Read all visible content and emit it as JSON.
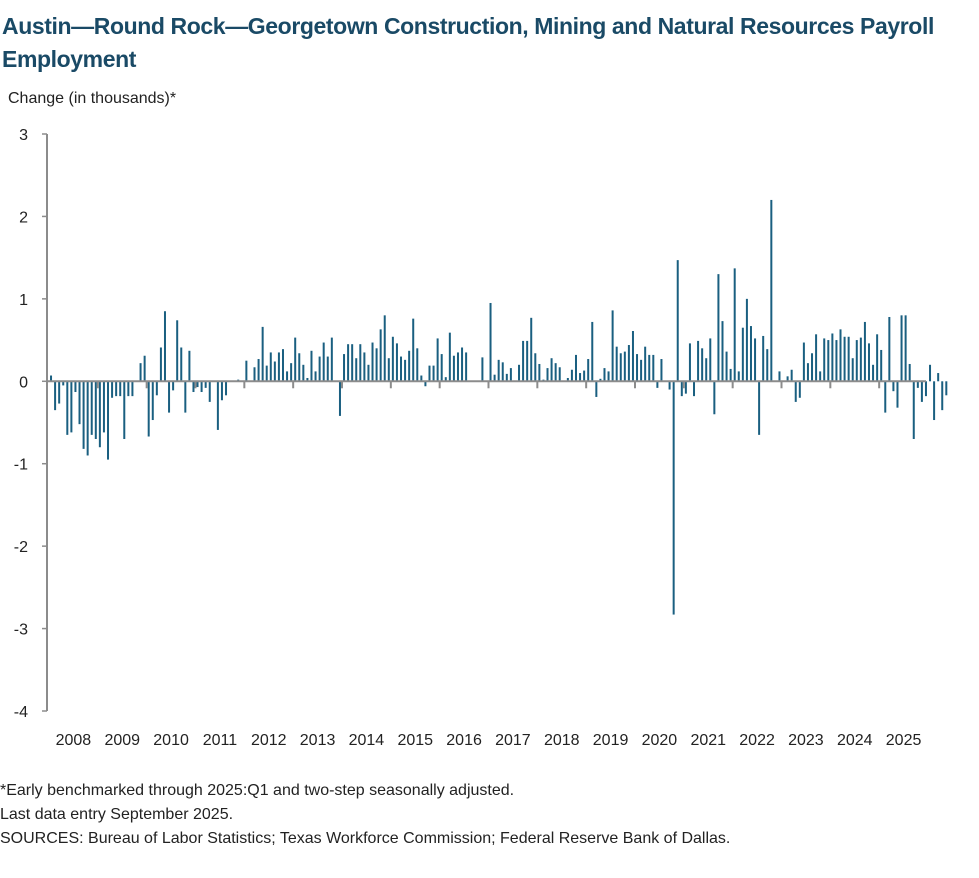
{
  "chart_data": {
    "type": "bar",
    "title": "Austin—Round Rock—Georgetown Construction, Mining and Natural Resources Payroll Employment",
    "ylabel": "Change (in thousands)*",
    "xlabel": "",
    "ylim": [
      -4,
      3
    ],
    "yticks": [
      3,
      2,
      1,
      0,
      -1,
      -2,
      -3,
      -4
    ],
    "ytick_labels": [
      "3",
      "2",
      "1",
      "0",
      "-1",
      "-2",
      "-3",
      "-4"
    ],
    "xtick_labels": [
      "2008",
      "2009",
      "2010",
      "2011",
      "2012",
      "2013",
      "2014",
      "2015",
      "2016",
      "2017",
      "2018",
      "2019",
      "2020",
      "2021",
      "2022",
      "2023",
      "2024",
      "2025"
    ],
    "frequency": "monthly",
    "start": "2008-01",
    "end": "2025-09",
    "bar_color": "#1a5f80",
    "grid": false,
    "legend": "none",
    "values": [
      0.07,
      -0.35,
      -0.27,
      -0.05,
      -0.65,
      -0.62,
      -0.13,
      -0.52,
      -0.82,
      -0.9,
      -0.65,
      -0.7,
      -0.8,
      -0.62,
      -0.95,
      -0.2,
      -0.18,
      -0.18,
      -0.7,
      -0.18,
      -0.18,
      0.0,
      0.22,
      0.31,
      -0.67,
      -0.47,
      -0.17,
      0.41,
      0.85,
      -0.38,
      -0.11,
      0.74,
      0.41,
      -0.38,
      0.37,
      -0.13,
      -0.07,
      -0.13,
      -0.08,
      -0.25,
      0.0,
      -0.59,
      -0.23,
      -0.17,
      0.0,
      0.0,
      0.02,
      0.0,
      0.25,
      0.0,
      0.17,
      0.27,
      0.66,
      0.19,
      0.35,
      0.24,
      0.35,
      0.39,
      0.12,
      0.22,
      0.53,
      0.34,
      0.2,
      0.04,
      0.37,
      0.12,
      0.3,
      0.47,
      0.3,
      0.53,
      0.0,
      -0.42,
      0.33,
      0.45,
      0.45,
      0.28,
      0.45,
      0.35,
      0.2,
      0.47,
      0.4,
      0.63,
      0.8,
      0.28,
      0.54,
      0.46,
      0.3,
      0.26,
      0.37,
      0.76,
      0.4,
      0.07,
      -0.06,
      0.19,
      0.19,
      0.52,
      0.33,
      0.05,
      0.59,
      0.31,
      0.35,
      0.41,
      0.35,
      0.0,
      0.0,
      0.0,
      0.29,
      0.0,
      0.95,
      0.08,
      0.26,
      0.23,
      0.09,
      0.16,
      0.0,
      0.2,
      0.49,
      0.49,
      0.77,
      0.34,
      0.21,
      0.02,
      0.16,
      0.28,
      0.22,
      0.17,
      0.0,
      0.04,
      0.14,
      0.32,
      0.1,
      0.13,
      0.27,
      0.72,
      -0.19,
      0.03,
      0.16,
      0.12,
      0.86,
      0.42,
      0.34,
      0.36,
      0.44,
      0.61,
      0.33,
      0.26,
      0.42,
      0.32,
      0.32,
      -0.08,
      0.27,
      0.0,
      -0.1,
      -2.83,
      1.47,
      -0.18,
      -0.15,
      0.46,
      -0.18,
      0.49,
      0.4,
      0.28,
      0.52,
      -0.4,
      1.3,
      0.73,
      0.36,
      0.15,
      1.37,
      0.12,
      0.65,
      1.0,
      0.67,
      0.52,
      -0.65,
      0.55,
      0.39,
      2.2,
      0.0,
      0.12,
      0.0,
      0.06,
      0.14,
      -0.25,
      -0.2,
      0.47,
      0.22,
      0.34,
      0.57,
      0.12,
      0.52,
      0.5,
      0.58,
      0.5,
      0.63,
      0.54,
      0.54,
      0.28,
      0.5,
      0.53,
      0.72,
      0.46,
      0.2,
      0.57,
      0.38,
      -0.38,
      0.78,
      -0.12,
      -0.32,
      0.8,
      0.8,
      0.21,
      -0.7,
      -0.08,
      -0.25,
      -0.18,
      0.2,
      -0.47,
      0.1,
      -0.35,
      -0.17
    ]
  },
  "footnotes": {
    "note1": "*Early benchmarked through 2025:Q1 and two-step seasonally adjusted.",
    "note2": "Last data entry September 2025.",
    "sources": "SOURCES:  Bureau of Labor Statistics; Texas Workforce Commission;  Federal Reserve Bank of Dallas."
  }
}
